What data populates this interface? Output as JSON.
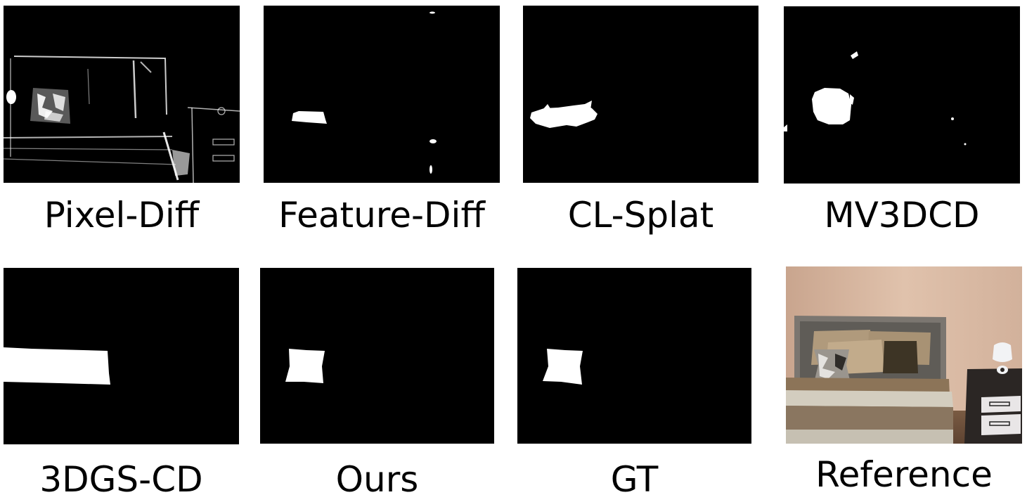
{
  "figure": {
    "panels": [
      {
        "id": "pixel-diff",
        "label": "Pixel-Diff"
      },
      {
        "id": "feature-diff",
        "label": "Feature-Diff"
      },
      {
        "id": "cl-splat",
        "label": "CL-Splat"
      },
      {
        "id": "mv3dcd",
        "label": "MV3DCD"
      },
      {
        "id": "3dgs-cd",
        "label": "3DGS-CD"
      },
      {
        "id": "ours",
        "label": "Ours"
      },
      {
        "id": "gt",
        "label": "GT"
      },
      {
        "id": "reference",
        "label": "Reference"
      }
    ]
  },
  "colors": {
    "background": "#ffffff",
    "mask_background": "#000000",
    "mask_foreground": "#ffffff",
    "wall": "#d9b9a3",
    "headboard": "#7b7670",
    "bedsheet": "#c9c2b4",
    "bed_runner": "#8c7458",
    "pillow_light": "#b7a182",
    "pillow_dark": "#3d3425",
    "nightstand": "#2b2624",
    "nightstand_drawer": "#e9e6e7",
    "lamp": "#f2f3f5"
  }
}
